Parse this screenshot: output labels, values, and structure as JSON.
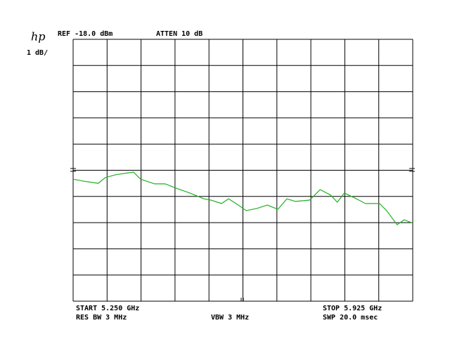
{
  "chart_data": {
    "type": "line",
    "logo": "hp",
    "ref_level": "REF -18.0 dBm",
    "attenuation": "ATTEN 10 dB",
    "scale": "1 dB/",
    "start": "START 5.250 GHz",
    "stop": "STOP 5.925 GHz",
    "rbw": "RES BW 3 MHz",
    "vbw": "VBW 3 MHz",
    "sweep": "SWP 20.0 msec",
    "color": "#20b020",
    "x": [
      5.25,
      5.272,
      5.3,
      5.314,
      5.335,
      5.37,
      5.384,
      5.412,
      5.433,
      5.454,
      5.482,
      5.51,
      5.524,
      5.545,
      5.559,
      5.58,
      5.594,
      5.615,
      5.636,
      5.657,
      5.675,
      5.692,
      5.72,
      5.741,
      5.762,
      5.775,
      5.789,
      5.81,
      5.831,
      5.859,
      5.873,
      5.894,
      5.908,
      5.925
    ],
    "values": [
      -23.34,
      -23.42,
      -23.5,
      -23.28,
      -23.17,
      -23.07,
      -23.34,
      -23.52,
      -23.52,
      -23.68,
      -23.87,
      -24.09,
      -24.14,
      -24.27,
      -24.09,
      -24.35,
      -24.54,
      -24.46,
      -24.33,
      -24.49,
      -24.09,
      -24.19,
      -24.14,
      -23.74,
      -23.95,
      -24.22,
      -23.87,
      -24.06,
      -24.27,
      -24.27,
      -24.54,
      -25.08,
      -24.89,
      -25.02
    ],
    "xlim": [
      5.25,
      5.925
    ],
    "ylim": [
      -28,
      -18
    ],
    "xticks": [
      5.25,
      5.3175,
      5.385,
      5.4525,
      5.52,
      5.5875,
      5.655,
      5.7225,
      5.79,
      5.8575,
      5.925
    ],
    "yticks": [
      -28,
      -27,
      -26,
      -25,
      -24,
      -23,
      -22,
      -21,
      -20,
      -19,
      -18
    ],
    "grid": true
  }
}
